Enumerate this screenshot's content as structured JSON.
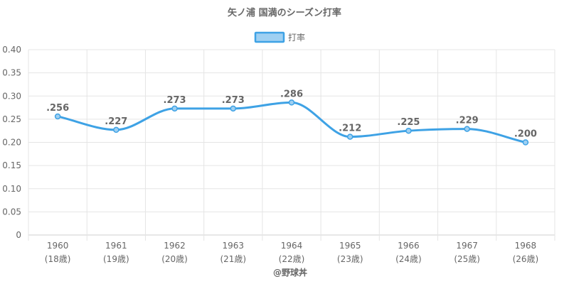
{
  "chart_data": {
    "type": "line",
    "title": "矢ノ浦 国満のシーズン打率",
    "categories": [
      "1960",
      "1961",
      "1962",
      "1963",
      "1964",
      "1965",
      "1966",
      "1967",
      "1968"
    ],
    "sublabels": [
      "(18歳)",
      "(19歳)",
      "(20歳)",
      "(21歳)",
      "(22歳)",
      "(23歳)",
      "(24歳)",
      "(25歳)",
      "(26歳)"
    ],
    "series": [
      {
        "name": "打率",
        "values": [
          0.256,
          0.227,
          0.273,
          0.273,
          0.286,
          0.212,
          0.225,
          0.229,
          0.2
        ],
        "labels": [
          ".256",
          ".227",
          ".273",
          ".273",
          ".286",
          ".212",
          ".225",
          ".229",
          ".200"
        ]
      }
    ],
    "ylim": [
      0,
      0.4
    ],
    "yticks": [
      "0",
      "0.05",
      "0.10",
      "0.15",
      "0.20",
      "0.25",
      "0.30",
      "0.35",
      "0.40"
    ],
    "grid": true,
    "legend_position": "top-center",
    "line_color": "#3ea2e5",
    "fill_color": "#9fd0f2"
  },
  "credit": "@野球丼"
}
